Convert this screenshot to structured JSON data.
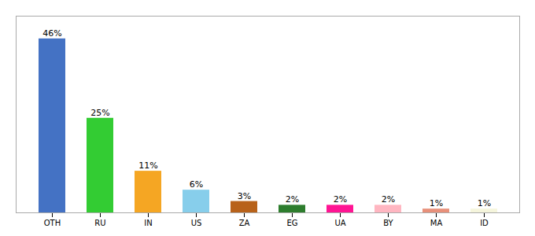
{
  "chart_data": {
    "type": "bar",
    "categories": [
      "OTH",
      "RU",
      "IN",
      "US",
      "ZA",
      "EG",
      "UA",
      "BY",
      "MA",
      "ID"
    ],
    "values": [
      46,
      25,
      11,
      6,
      3,
      2,
      2,
      2,
      1,
      1
    ],
    "value_labels": [
      "46%",
      "25%",
      "11%",
      "6%",
      "3%",
      "2%",
      "2%",
      "2%",
      "1%",
      "1%"
    ],
    "colors": [
      "#4472c4",
      "#33cc33",
      "#f5a623",
      "#87ceeb",
      "#b8621a",
      "#2d7d2d",
      "#ff1493",
      "#ffb6c1",
      "#e8907a",
      "#f5f5dc"
    ],
    "ylim": [
      0,
      52
    ],
    "data_labels": true,
    "tick_labels": "x"
  }
}
